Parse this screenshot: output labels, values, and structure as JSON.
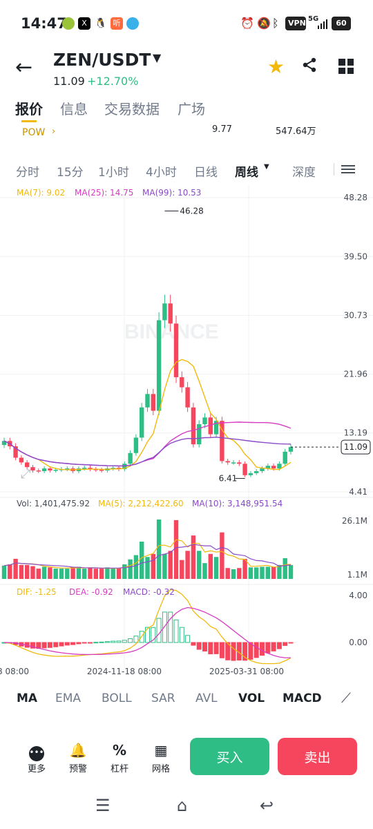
{
  "status": {
    "time": "14:47",
    "pills": [
      "VPN",
      "5G",
      "60"
    ]
  },
  "header": {
    "pair": "ZEN/USDT",
    "price": "11.09",
    "change": "+12.70%",
    "icons": [
      "back-arrow-icon",
      "caret-down-icon",
      "star-icon",
      "share-icon",
      "grid-icon"
    ]
  },
  "tabs": [
    "报价",
    "信息",
    "交易数据",
    "广场"
  ],
  "pow": {
    "label": "POW",
    "stat_a": "9.77",
    "stat_b": "547.64万"
  },
  "intervals": [
    "分时",
    "15分",
    "1小时",
    "4小时",
    "日线",
    "周线",
    "深度"
  ],
  "legend": {
    "ma7": "MA(7): 9.02",
    "ma25": "MA(25): 14.75",
    "ma99": "MA(99): 10.53",
    "vol": "Vol: 1,401,475.92",
    "vma5": "MA(5): 2,212,422.60",
    "vma10": "MA(10): 3,148,951.54",
    "dif": "DIF: -1.25",
    "dea": "DEA: -0.92",
    "macd": "MACD: -0.32"
  },
  "colors": {
    "up": "#2ebd85",
    "down": "#f6465d",
    "ma7": "#f0b90b",
    "ma25": "#d63bc1",
    "ma99": "#8a4ac8",
    "accent": "#f0b90b"
  },
  "watermark": "BINANCE",
  "chart_data": {
    "type": "candlestick",
    "price_axis_ticks": [
      "48.28",
      "39.50",
      "30.73",
      "21.96",
      "13.19",
      "4.41"
    ],
    "current_price": "11.09",
    "high_label": "46.28",
    "low_label": "6.41",
    "volume_axis_ticks": [
      "26.1M",
      "1.1M"
    ],
    "macd_axis_ticks": [
      "4.00",
      "0.00"
    ],
    "time_labels": [
      "8 08:00",
      "2024-11-18 08:00",
      "2025-03-31 08:00"
    ],
    "candles_close": [
      12.0,
      11.2,
      9.5,
      8.8,
      8.1,
      7.6,
      7.5,
      7.9,
      7.6,
      7.7,
      7.8,
      7.9,
      7.5,
      7.9,
      8.0,
      7.8,
      7.7,
      7.6,
      7.9,
      8.0,
      7.8,
      8.6,
      10.2,
      12.5,
      17.0,
      19.0,
      16.5,
      30.0,
      32.5,
      29.5,
      21.5,
      20.0,
      17.0,
      11.5,
      14.5,
      15.5,
      13.0,
      15.0,
      9.0,
      8.8,
      8.8,
      8.6,
      6.9,
      7.2,
      7.5,
      7.9,
      8.3,
      7.9,
      8.6,
      10.4,
      11.09
    ]
  },
  "indicators": [
    "MA",
    "EMA",
    "BOLL",
    "SAR",
    "AVL",
    "VOL",
    "MACD"
  ],
  "toolbar": [
    {
      "icon": "more-icon",
      "label": "更多"
    },
    {
      "icon": "bell-icon",
      "label": "预警"
    },
    {
      "icon": "percent-icon",
      "label": "杠杆"
    },
    {
      "icon": "grid-trading-icon",
      "label": "网格"
    }
  ],
  "buy": "买入",
  "sell": "卖出"
}
